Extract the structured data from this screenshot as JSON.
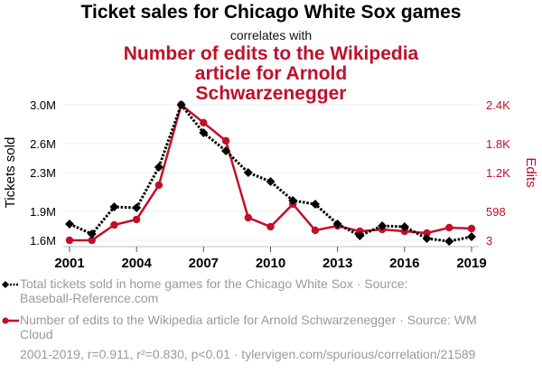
{
  "header": {
    "title": "Ticket sales for Chicago White Sox games",
    "connector": "correlates with",
    "subtitle": "Number of edits to the Wikipedia article for Arnold Schwarzenegger"
  },
  "legend": {
    "series1": "Total tickets sold in home games for the Chicago White Sox · Source: Baseball-Reference.com",
    "series2": "Number of edits to the Wikipedia article for Arnold Schwarzenegger · Source: WM Cloud"
  },
  "footer": "2001-2019, r=0.911, r²=0.830, p<0.01 · tylervigen.com/spurious/correlation/21589",
  "colors": {
    "series1": "#000000",
    "series2": "#c0102b",
    "grid": "#eeeeee",
    "axis": "#bbbbbb"
  },
  "chart_data": {
    "type": "line",
    "title": "Ticket sales for Chicago White Sox games correlates with Number of edits to the Wikipedia article for Arnold Schwarzenegger",
    "xlabel": "",
    "ylabel": "Tickets sold",
    "y2label": "Edits",
    "x": [
      2001,
      2002,
      2003,
      2004,
      2005,
      2006,
      2007,
      2008,
      2009,
      2010,
      2011,
      2012,
      2013,
      2014,
      2015,
      2016,
      2017,
      2018,
      2019
    ],
    "xticks": [
      "2001",
      "2004",
      "2007",
      "2010",
      "2013",
      "2016",
      "2019"
    ],
    "xtick_values": [
      2001,
      2004,
      2007,
      2010,
      2013,
      2016,
      2019
    ],
    "xlim": [
      2001,
      2019
    ],
    "yticks_left": [
      "1.6M",
      "1.9M",
      "2.3M",
      "2.6M",
      "3.0M"
    ],
    "yticks_left_values": [
      1600000,
      1900000,
      2300000,
      2600000,
      3000000
    ],
    "ylim_left": [
      1600000,
      3000000
    ],
    "yticks_right": [
      "3",
      "598",
      "1.2K",
      "1.8K",
      "2.4K"
    ],
    "yticks_right_values": [
      3,
      598,
      1200,
      1800,
      2400
    ],
    "ylim_right": [
      3,
      2400
    ],
    "grid": true,
    "legend_position": "bottom",
    "series": [
      {
        "name": "Total tickets sold in home games for the Chicago White Sox",
        "axis": "left",
        "style": "dotted-diamond",
        "values": [
          1768000,
          1665000,
          1945000,
          1936000,
          2356000,
          3000000,
          2711000,
          2524000,
          2300000,
          2207000,
          2011000,
          1973000,
          1768000,
          1647000,
          1749000,
          1740000,
          1619000,
          1590000,
          1637000
        ]
      },
      {
        "name": "Number of edits to the Wikipedia article for Arnold Schwarzenegger",
        "axis": "right",
        "style": "solid-circle",
        "values": [
          3,
          3,
          275,
          371,
          979,
          2400,
          2083,
          1763,
          403,
          243,
          643,
          179,
          259,
          163,
          195,
          163,
          131,
          227,
          211
        ]
      }
    ]
  }
}
